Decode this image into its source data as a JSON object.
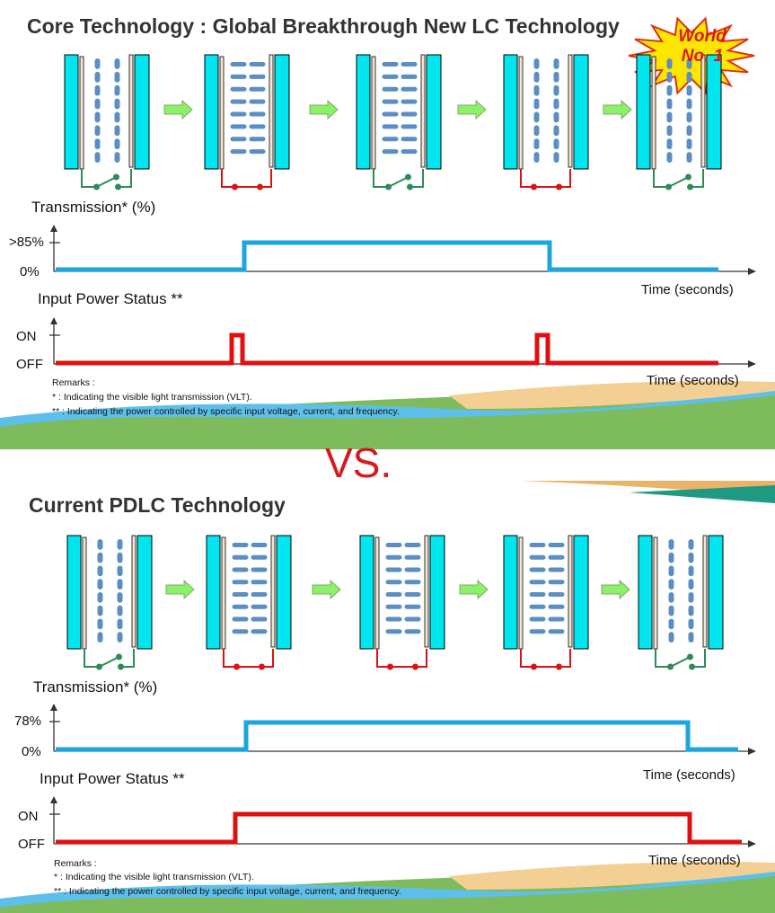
{
  "colors": {
    "glass": "#00e5ee",
    "crystal": "#5b8ec4",
    "blue_line": "#1aa7e0",
    "red_line": "#e01010",
    "switch": "#2e8b57",
    "arrow": "#8cf06a",
    "vs": "#d7191f"
  },
  "top": {
    "title": "Core Technology : Global Breakthrough New LC Technology",
    "badge": [
      "World",
      "No. 1"
    ],
    "states": [
      {
        "orientation": "vertical",
        "switch": "open"
      },
      {
        "orientation": "horizontal",
        "switch": "closed"
      },
      {
        "orientation": "horizontal",
        "switch": "open"
      },
      {
        "orientation": "vertical",
        "switch": "closed"
      },
      {
        "orientation": "vertical",
        "switch": "open"
      }
    ],
    "transmission_label": "Transmission* (%)",
    "trans_ticks": [
      ">85%",
      "0%"
    ],
    "power_label": "Input Power Status **",
    "power_ticks": [
      "ON",
      "OFF"
    ],
    "time_label": "Time (seconds)",
    "remarks": [
      "Remarks :",
      "*   : Indicating the visible light transmission (VLT).",
      "** : Indicating the power controlled by specific input voltage, current, and frequency."
    ]
  },
  "vs": "VS.",
  "bottom": {
    "title": "Current PDLC Technology",
    "states": [
      {
        "orientation": "vertical",
        "switch": "open"
      },
      {
        "orientation": "horizontal",
        "switch": "closed"
      },
      {
        "orientation": "horizontal",
        "switch": "closed"
      },
      {
        "orientation": "horizontal",
        "switch": "closed"
      },
      {
        "orientation": "vertical",
        "switch": "open"
      }
    ],
    "transmission_label": "Transmission* (%)",
    "trans_ticks": [
      "78%",
      "0%"
    ],
    "power_label": "Input Power Status **",
    "power_ticks": [
      "ON",
      "OFF"
    ],
    "time_label": "Time (seconds)",
    "remarks": [
      "Remarks :",
      "*   : Indicating the visible light transmission (VLT).",
      "** : Indicating the power controlled by specific input voltage, current, and frequency."
    ]
  }
}
